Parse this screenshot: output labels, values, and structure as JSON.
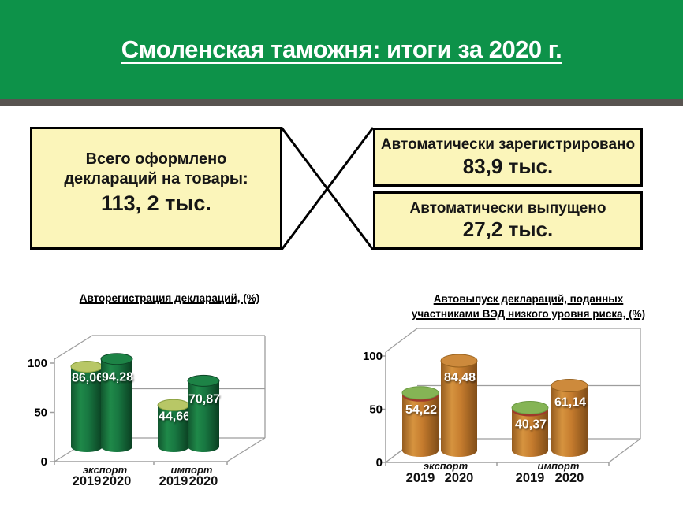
{
  "slide": {
    "title": "Смоленская таможня: итоги за 2020 г.",
    "header_color": "#0d9249",
    "header_shadow_color": "#585450",
    "box_fill": "#fbf5ba"
  },
  "info_boxes": {
    "total": {
      "label_line1": "Всего оформлено",
      "label_line2": "деклараций на товары:",
      "value": "113, 2 тыс."
    },
    "auto_registered": {
      "label": "Автоматически зарегистрировано",
      "value": "83,9 тыс."
    },
    "auto_released": {
      "label": "Автоматически выпущено",
      "value": "27,2 тыс."
    }
  },
  "chart_data": [
    {
      "type": "bar",
      "title": "Авторегистрация деклараций, (%)",
      "title_lines": [
        "Авторегистрация деклараций, (%)"
      ],
      "categories": [
        "экспорт",
        "импорт"
      ],
      "series": [
        {
          "name": "2019",
          "values": [
            86.06,
            44.66
          ],
          "labels": [
            "86,06",
            "44,66"
          ]
        },
        {
          "name": "2020",
          "values": [
            94.28,
            70.87
          ],
          "labels": [
            "94,28",
            "70,87"
          ]
        }
      ],
      "yticks": [
        0,
        50,
        100
      ],
      "ylim": [
        0,
        100
      ],
      "legend": "none",
      "grid": true,
      "bar_color": "#15713c",
      "cap_color_2019": "#b8c766",
      "cap_color_2020": "#1d8346"
    },
    {
      "type": "bar",
      "title": "Автовыпуск деклараций, поданных участниками ВЭД низкого уровня риска, (%)",
      "title_lines": [
        "Автовыпуск деклараций, поданных",
        "участниками ВЭД низкого уровня риска, (%)"
      ],
      "categories": [
        "экспорт",
        "импорт"
      ],
      "series": [
        {
          "name": "2019",
          "values": [
            54.22,
            40.37
          ],
          "labels": [
            "54,22",
            "40,37"
          ]
        },
        {
          "name": "2020",
          "values": [
            84.48,
            61.14
          ],
          "labels": [
            "84,48",
            "61,14"
          ]
        }
      ],
      "yticks": [
        0,
        50,
        100
      ],
      "ylim": [
        0,
        100
      ],
      "legend": "none",
      "grid": true,
      "bar_color": "#c77f30",
      "cap_color_2019": "#85b455",
      "cap_rim_2019": "#9e392b",
      "cap_color_2020": "#cd8a3c"
    }
  ]
}
